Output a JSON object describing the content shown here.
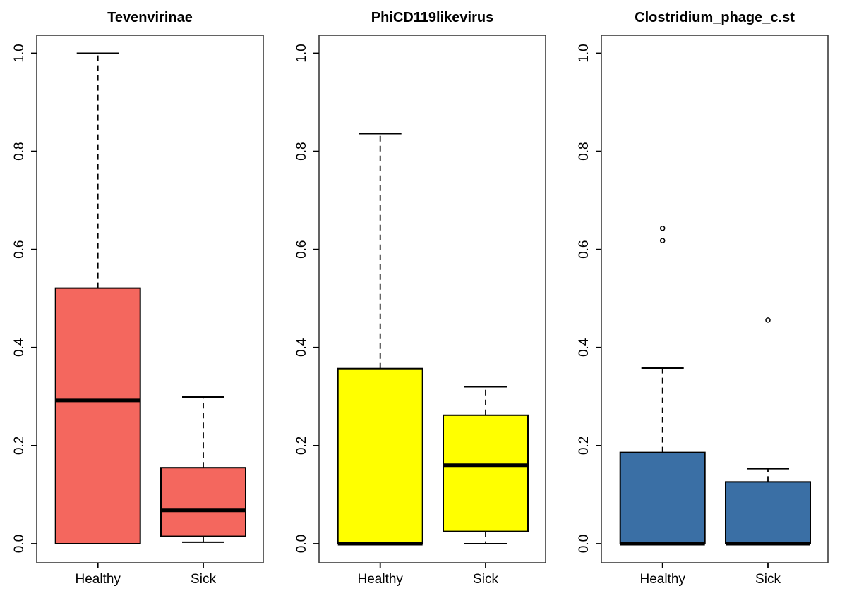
{
  "figure": {
    "background": "#ffffff",
    "frame_color": "#3c3c3c",
    "axis_color": "#000000",
    "outlier_fill": "#ffffff"
  },
  "chart_data": {
    "type": "boxplot",
    "categories": [
      "Healthy",
      "Sick"
    ],
    "ylim": [
      0,
      1
    ],
    "grid": false,
    "y_ticks": [
      0.0,
      0.2,
      0.4,
      0.6,
      0.8,
      1.0
    ],
    "y_tick_labels": [
      "0.0",
      "0.2",
      "0.4",
      "0.6",
      "0.8",
      "1.0"
    ],
    "panels": [
      {
        "title": "Tevenvirinae",
        "box_fill": "#f4675e",
        "series": [
          {
            "category": "Healthy",
            "whisker_low": 0.0,
            "q1": 0.0,
            "median": 0.292,
            "q3": 0.521,
            "whisker_high": 1.0,
            "outliers": []
          },
          {
            "category": "Sick",
            "whisker_low": 0.003,
            "q1": 0.015,
            "median": 0.068,
            "q3": 0.155,
            "whisker_high": 0.299,
            "outliers": []
          }
        ]
      },
      {
        "title": "PhiCD119likevirus",
        "box_fill": "#ffff00",
        "series": [
          {
            "category": "Healthy",
            "whisker_low": 0.0,
            "q1": 0.0,
            "median": 0.0,
            "q3": 0.357,
            "whisker_high": 0.836,
            "outliers": []
          },
          {
            "category": "Sick",
            "whisker_low": 0.0,
            "q1": 0.025,
            "median": 0.16,
            "q3": 0.262,
            "whisker_high": 0.32,
            "outliers": []
          }
        ]
      },
      {
        "title": "Clostridium_phage_c.st",
        "box_fill": "#3a6fa5",
        "series": [
          {
            "category": "Healthy",
            "whisker_low": 0.0,
            "q1": 0.0,
            "median": 0.0,
            "q3": 0.186,
            "whisker_high": 0.358,
            "outliers": [
              0.643,
              0.618
            ]
          },
          {
            "category": "Sick",
            "whisker_low": 0.0,
            "q1": 0.0,
            "median": 0.0,
            "q3": 0.126,
            "whisker_high": 0.153,
            "outliers": [
              0.456
            ]
          }
        ]
      }
    ]
  }
}
